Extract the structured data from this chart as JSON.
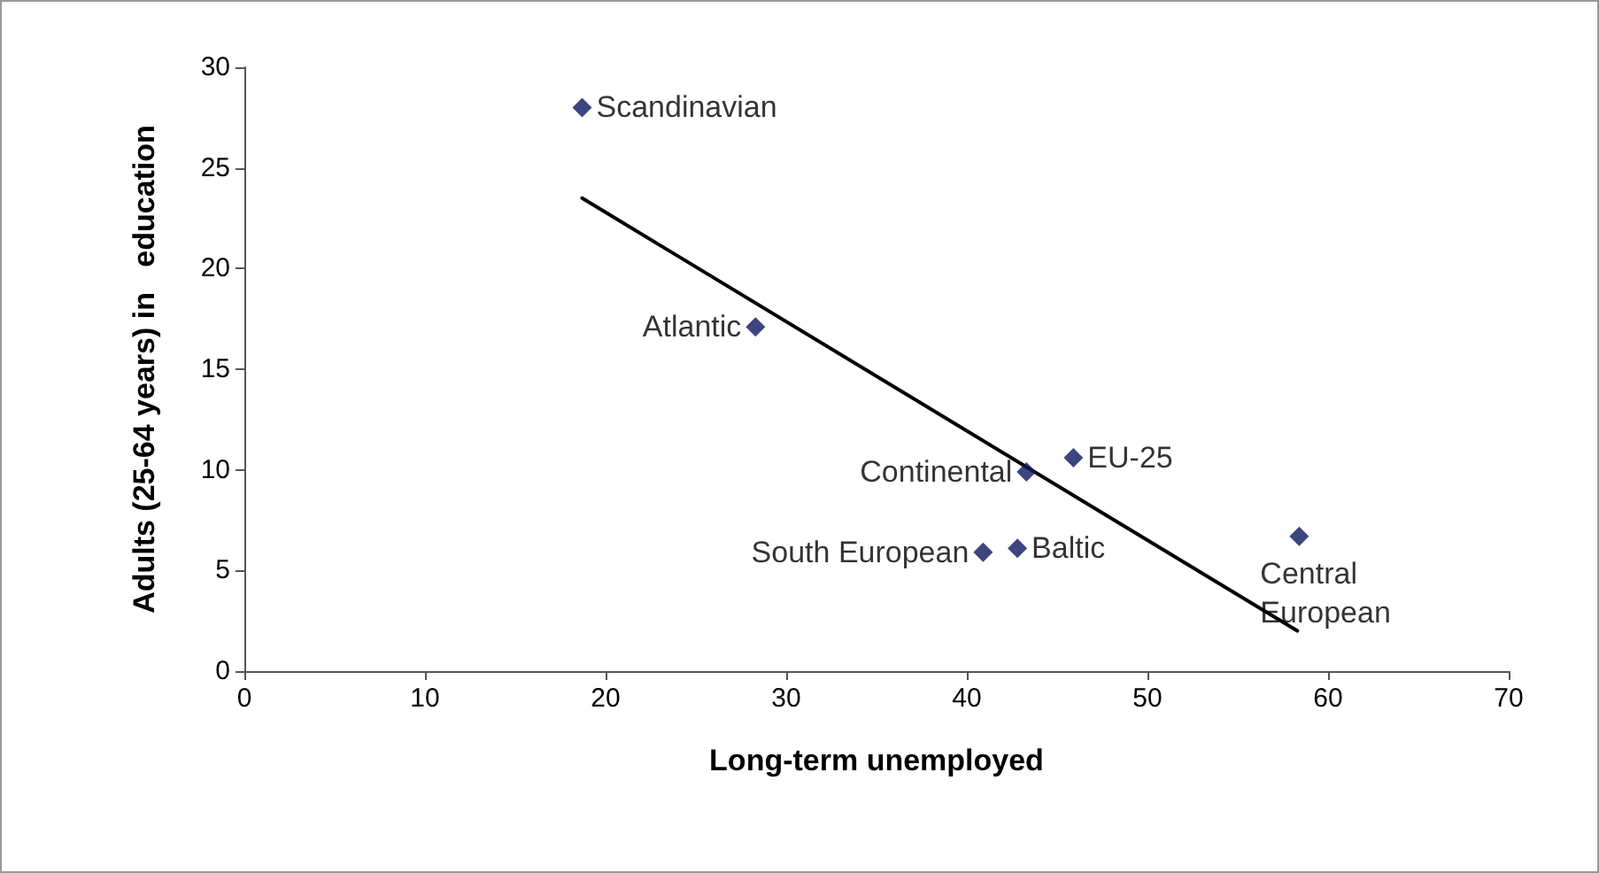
{
  "chart_data": {
    "type": "scatter",
    "xlabel": "Long-term unemployed",
    "ylabel": "Adults (25-64 years) in   education",
    "xlim": [
      0,
      70
    ],
    "xticks": [
      0,
      10,
      20,
      30,
      40,
      50,
      60,
      70
    ],
    "ylim": [
      0,
      30
    ],
    "yticks": [
      0,
      5,
      10,
      15,
      20,
      25,
      30
    ],
    "grid": false,
    "marker": "diamond",
    "series": [
      {
        "color": "#0d1660",
        "x": [
          18.7,
          28.3,
          43.3,
          45.9,
          40.9,
          42.8,
          58.4
        ],
        "values": [
          28.0,
          17.1,
          9.9,
          10.6,
          5.9,
          6.1,
          6.7
        ]
      },
      {
        "type": "line",
        "marker": "none",
        "color": "#000000",
        "x": [
          18.7,
          58.3
        ],
        "values": [
          23.5,
          2.0
        ]
      }
    ],
    "annotations": [
      {
        "text": "Scandinavian",
        "x": 18.7,
        "y": 28.0
      },
      {
        "text": "Atlantic",
        "x": 28.3,
        "y": 17.1
      },
      {
        "text": "Continental",
        "x": 43.3,
        "y": 9.9
      },
      {
        "text": "EU-25",
        "x": 45.9,
        "y": 10.6
      },
      {
        "text": "South European",
        "x": 40.9,
        "y": 5.9
      },
      {
        "text": "Baltic",
        "x": 42.8,
        "y": 6.1
      },
      {
        "text": "Central European",
        "x": 58.4,
        "y": 6.7
      }
    ]
  }
}
